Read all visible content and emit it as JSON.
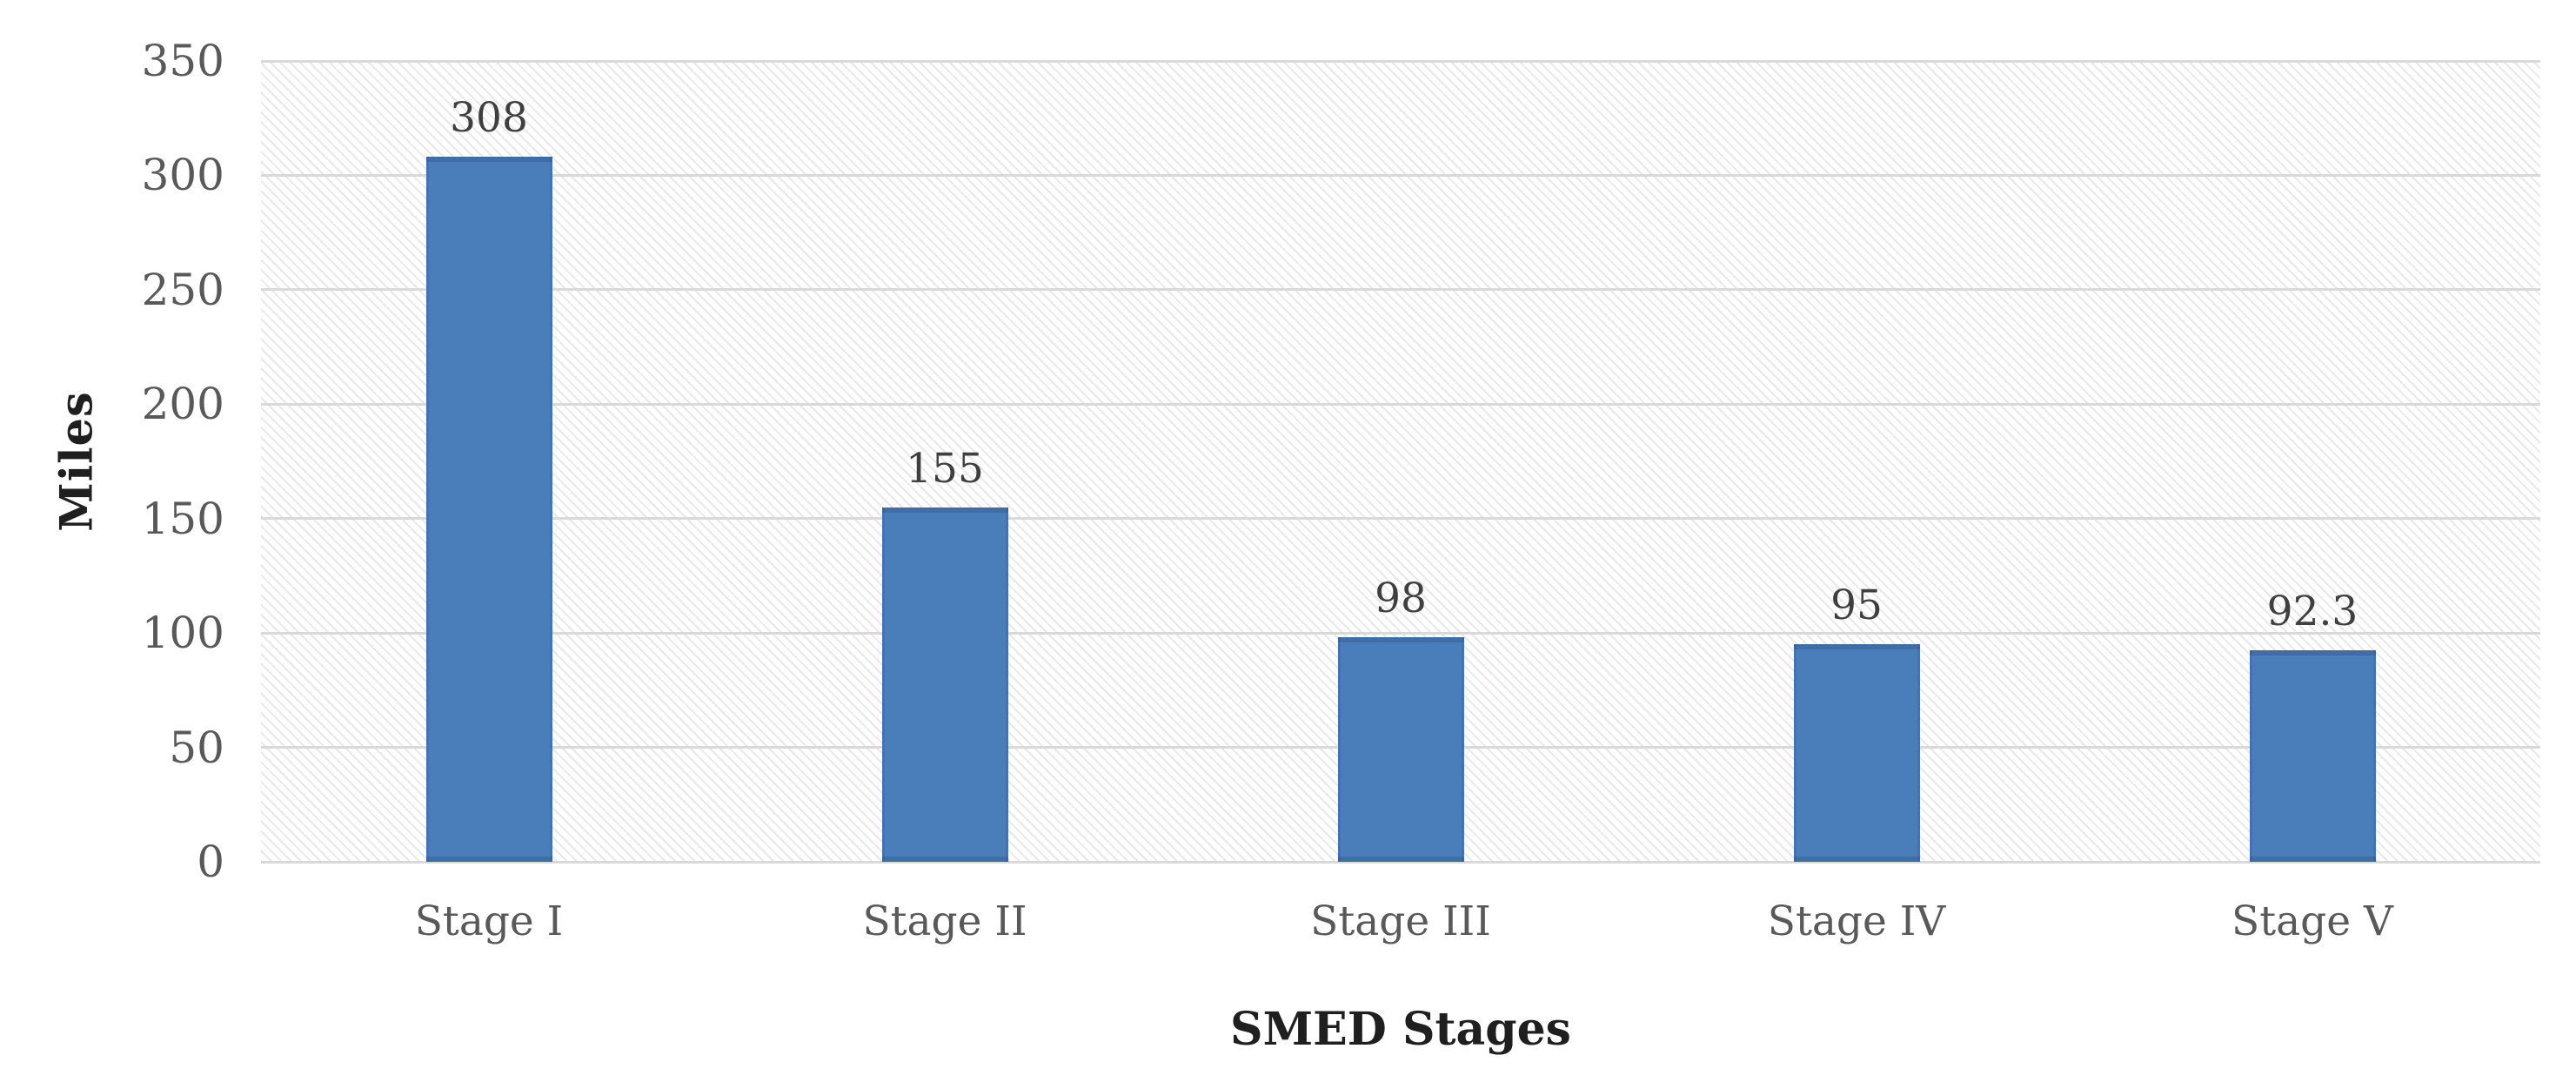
{
  "chart_data": {
    "type": "bar",
    "title": "",
    "categories": [
      "Stage I",
      "Stage II",
      "Stage III",
      "Stage IV",
      "Stage V"
    ],
    "values": [
      308,
      155,
      98,
      95,
      92.3
    ],
    "data_labels": [
      "308",
      "155",
      "98",
      "95",
      "92.3"
    ],
    "xlabel": "SMED Stages",
    "ylabel": "Miles",
    "ylim": [
      0,
      350
    ],
    "yticks": [
      0,
      50,
      100,
      150,
      200,
      250,
      300,
      350
    ],
    "grid": "horizontal gridlines on, hatched plot background",
    "legend": "none",
    "colors": {
      "bar_fill": "#4a7ebb",
      "gridline": "#d9d9d9",
      "hatch_line": "#e8e8e8",
      "tick_label": "#595959",
      "data_label": "#3f3f3f",
      "axis_title": "#1f1f1f",
      "background": "#ffffff"
    }
  }
}
